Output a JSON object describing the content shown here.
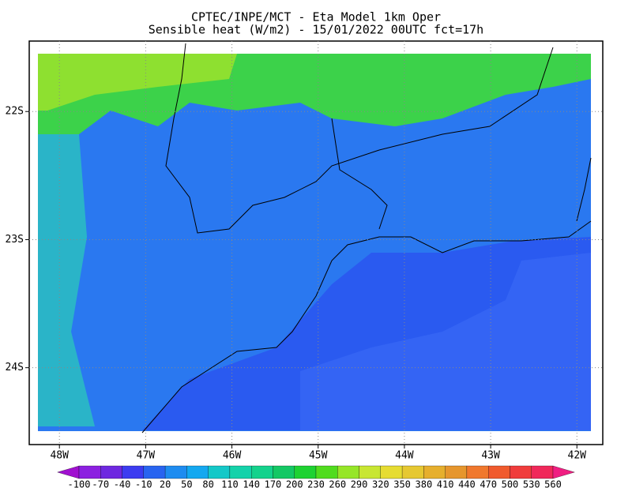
{
  "map": {
    "title": "CPTEC/INPE/MCT -  Eta Model 1km Oper",
    "subtitle": "Sensible heat (W/m2) - 15/01/2022 00UTC fct=17h",
    "xlim": [
      -48.35,
      -41.7
    ],
    "ylim": [
      -24.6,
      -21.45
    ],
    "xticks": [
      {
        "value": -48,
        "label": "48W"
      },
      {
        "value": -47,
        "label": "47W"
      },
      {
        "value": -46,
        "label": "46W"
      },
      {
        "value": -45,
        "label": "45W"
      },
      {
        "value": -44,
        "label": "44W"
      },
      {
        "value": -43,
        "label": "43W"
      },
      {
        "value": -42,
        "label": "42W"
      }
    ],
    "yticks": [
      {
        "value": -22,
        "label": "22S"
      },
      {
        "value": -23,
        "label": "23S"
      },
      {
        "value": -24,
        "label": "24S"
      }
    ],
    "grid": true,
    "colorbar": {
      "levels": [
        -100,
        -70,
        -40,
        -10,
        20,
        50,
        80,
        110,
        140,
        170,
        200,
        230,
        260,
        290,
        320,
        350,
        380,
        410,
        440,
        470,
        500,
        530,
        560
      ],
      "colors": [
        "#a010d0",
        "#8c20e0",
        "#6e28e0",
        "#3c3cf0",
        "#2864f0",
        "#1e8cf0",
        "#14a8f0",
        "#14c8c8",
        "#14d2aa",
        "#14d28c",
        "#14c864",
        "#1ed232",
        "#50dc1e",
        "#96e628",
        "#c8e632",
        "#e6dc32",
        "#e6c832",
        "#e6af2d",
        "#e6962d",
        "#f0782d",
        "#f05a2d",
        "#f03c3c",
        "#f0285a",
        "#f01e82"
      ]
    }
  }
}
